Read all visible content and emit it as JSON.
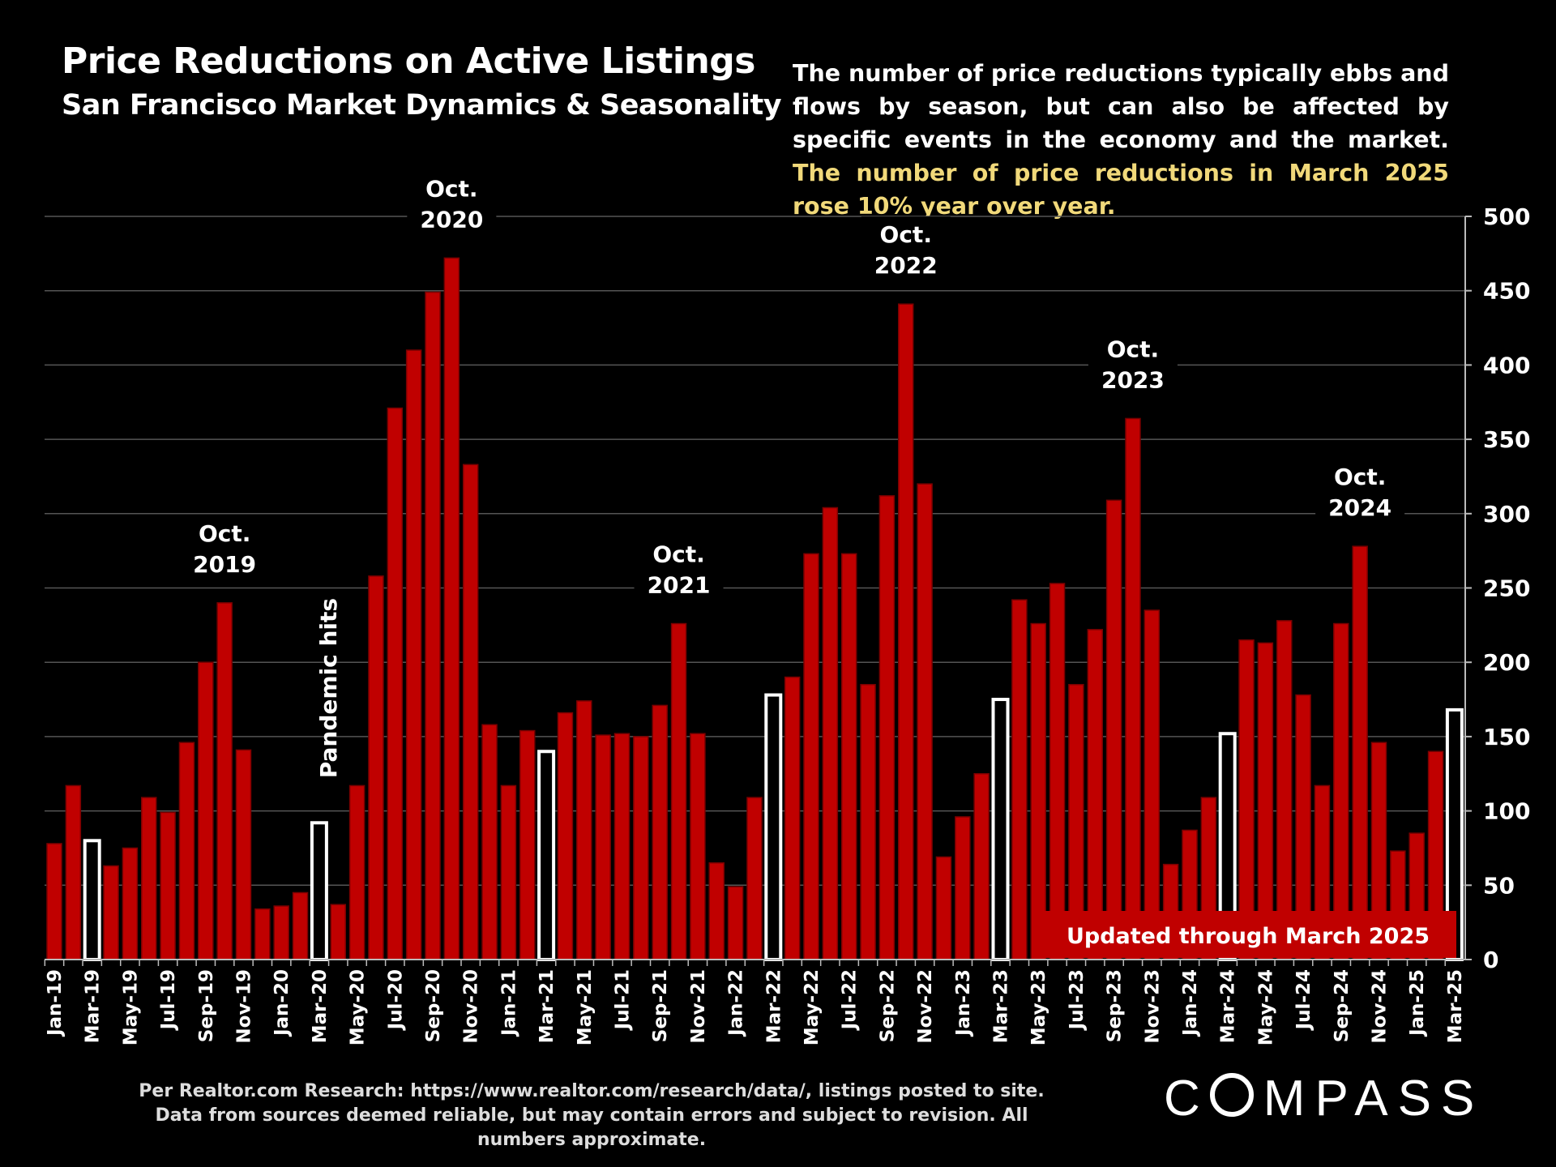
{
  "header": {
    "title": "Price Reductions on Active Listings",
    "subtitle": "San Francisco Market Dynamics & Seasonality",
    "description_plain": "The number of price reductions typically ebbs and flows by season, but can also be affected by specific events in the economy and the market.",
    "description_highlight": "The number of price reductions in March 2025 rose 10% year over year."
  },
  "footer": {
    "source": "Per Realtor.com Research:  https://www.realtor.com/research/data/, listings posted to site. Data from sources deemed reliable, but may contain errors and subject to revision. All numbers approximate.",
    "logo": "COMPASS"
  },
  "colors": {
    "bar": "#c00000",
    "bar_highlight": "#ffffff",
    "grid": "#555555",
    "badge": "#c00000"
  },
  "chart_data": {
    "type": "bar",
    "title": "Price Reductions on Active Listings",
    "ylim": [
      0,
      500
    ],
    "yticks": [
      0,
      50,
      100,
      150,
      200,
      250,
      300,
      350,
      400,
      450,
      500
    ],
    "y_axis_position": "right",
    "grid": true,
    "categories": [
      "Jan-19",
      "Feb-19",
      "Mar-19",
      "Apr-19",
      "May-19",
      "Jun-19",
      "Jul-19",
      "Aug-19",
      "Sep-19",
      "Oct-19",
      "Nov-19",
      "Dec-19",
      "Jan-20",
      "Feb-20",
      "Mar-20",
      "Apr-20",
      "May-20",
      "Jun-20",
      "Jul-20",
      "Aug-20",
      "Sep-20",
      "Oct-20",
      "Nov-20",
      "Dec-20",
      "Jan-21",
      "Feb-21",
      "Mar-21",
      "Apr-21",
      "May-21",
      "Jun-21",
      "Jul-21",
      "Aug-21",
      "Sep-21",
      "Oct-21",
      "Nov-21",
      "Dec-21",
      "Jan-22",
      "Feb-22",
      "Mar-22",
      "Apr-22",
      "May-22",
      "Jun-22",
      "Jul-22",
      "Aug-22",
      "Sep-22",
      "Oct-22",
      "Nov-22",
      "Dec-22",
      "Jan-23",
      "Feb-23",
      "Mar-23",
      "Apr-23",
      "May-23",
      "Jun-23",
      "Jul-23",
      "Aug-23",
      "Sep-23",
      "Oct-23",
      "Nov-23",
      "Dec-23",
      "Jan-24",
      "Feb-24",
      "Mar-24",
      "Apr-24",
      "May-24",
      "Jun-24",
      "Jul-24",
      "Aug-24",
      "Sep-24",
      "Oct-24",
      "Nov-24",
      "Dec-24",
      "Jan-25",
      "Feb-25",
      "Mar-25"
    ],
    "values": [
      78,
      117,
      80,
      63,
      75,
      109,
      99,
      146,
      200,
      240,
      141,
      34,
      36,
      45,
      92,
      37,
      117,
      258,
      371,
      410,
      449,
      472,
      333,
      158,
      117,
      154,
      140,
      166,
      174,
      151,
      152,
      150,
      171,
      226,
      152,
      65,
      49,
      109,
      178,
      190,
      273,
      304,
      273,
      185,
      312,
      441,
      320,
      69,
      96,
      125,
      175,
      242,
      226,
      253,
      185,
      222,
      309,
      364,
      235,
      64,
      87,
      109,
      152,
      215,
      213,
      228,
      178,
      117,
      226,
      278,
      146,
      73,
      85,
      140,
      168
    ],
    "highlighted_months": [
      "Mar-19",
      "Mar-20",
      "Mar-21",
      "Mar-22",
      "Mar-23",
      "Mar-24",
      "Mar-25"
    ],
    "annotations": [
      {
        "month": "Oct-19",
        "line1": "Oct.",
        "line2": "2019"
      },
      {
        "month": "Oct-20",
        "line1": "Oct.",
        "line2": "2020"
      },
      {
        "month": "Oct-21",
        "line1": "Oct.",
        "line2": "2021"
      },
      {
        "month": "Oct-22",
        "line1": "Oct.",
        "line2": "2022"
      },
      {
        "month": "Oct-23",
        "line1": "Oct.",
        "line2": "2023"
      },
      {
        "month": "Oct-24",
        "line1": "Oct.",
        "line2": "2024"
      }
    ],
    "event_label": {
      "month": "Mar-20",
      "text": "Pandemic hits"
    },
    "badge": "Updated through March 2025"
  }
}
